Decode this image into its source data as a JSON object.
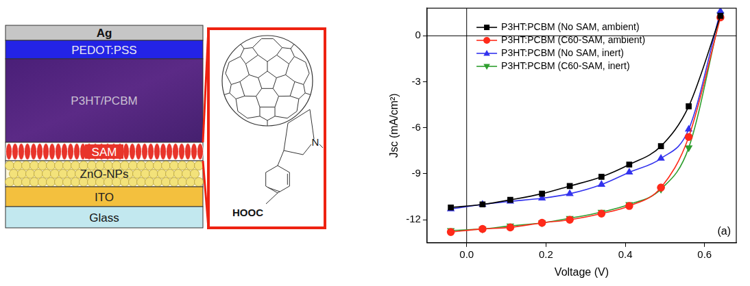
{
  "diagram": {
    "layers": [
      "Ag",
      "PEDOT:PSS",
      "P3HT/PCBM",
      "SAM",
      "ZnO-NPs",
      "ITO",
      "Glass"
    ],
    "molecule": {
      "labels": [
        "N",
        "HOOC"
      ]
    }
  },
  "chart_data": {
    "type": "line",
    "x_label": "Voltage (V)",
    "y_label": "Jsc (mA/cm²)",
    "annotation": "(a)",
    "x": [
      -0.04,
      0.04,
      0.11,
      0.19,
      0.26,
      0.34,
      0.41,
      0.49,
      0.56,
      0.64
    ],
    "series": [
      {
        "name": "P3HT:PCBM (No SAM, ambient)",
        "color": "#000000",
        "marker": "square",
        "line_style": "solid",
        "values": [
          -11.2,
          -11.0,
          -10.7,
          -10.3,
          -9.8,
          -9.2,
          -8.4,
          -7.2,
          -4.6,
          1.3
        ]
      },
      {
        "name": "P3HT:PCBM (C60-SAM, ambient)",
        "color": "#ff2a1a",
        "marker": "circle",
        "line_style": "solid",
        "values": [
          -12.8,
          -12.6,
          -12.5,
          -12.2,
          -12.0,
          -11.6,
          -11.1,
          -9.9,
          -6.6,
          1.2
        ]
      },
      {
        "name": "P3HT:PCBM (No SAM, inert)",
        "color": "#3333ee",
        "marker": "triangle",
        "line_style": "solid",
        "values": [
          -11.3,
          -11.0,
          -10.8,
          -10.6,
          -10.3,
          -9.7,
          -8.9,
          -8.0,
          -6.1,
          1.6
        ]
      },
      {
        "name": "P3HT:PCBM (C60-SAM, inert)",
        "color": "#2e9e2e",
        "marker": "triangle_down",
        "line_style": "solid",
        "values": [
          -12.7,
          -12.6,
          -12.4,
          -12.2,
          -11.9,
          -11.5,
          -11.0,
          -10.0,
          -7.3,
          1.4
        ]
      }
    ],
    "xlim": [
      -0.1,
      0.68
    ],
    "xticks": [
      {
        "value": 0,
        "label": "0.0"
      },
      0.2,
      0.4,
      0.6
    ],
    "ylim": [
      -13.5,
      1.8
    ],
    "yticks": [
      -12,
      -9,
      -6,
      -3,
      0
    ],
    "grid": false,
    "legend": "top"
  }
}
